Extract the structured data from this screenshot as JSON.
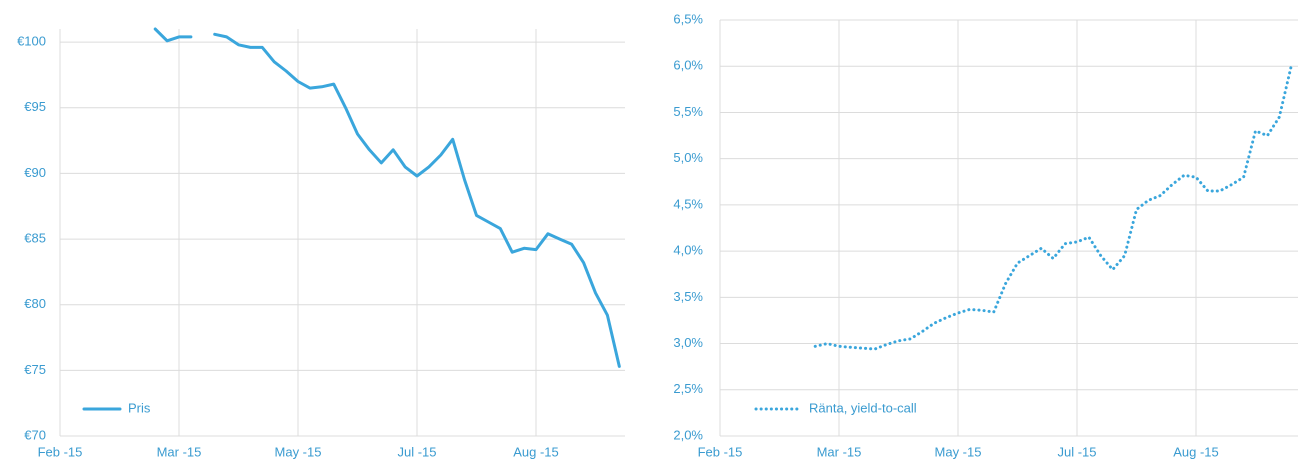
{
  "chart_data": [
    {
      "type": "line",
      "categories": [
        "Feb -15",
        null,
        null,
        null,
        null,
        null,
        null,
        null,
        null,
        null,
        "Mar -15",
        null,
        null,
        null,
        null,
        null,
        null,
        null,
        null,
        null,
        "May -15",
        null,
        null,
        null,
        null,
        null,
        null,
        null,
        null,
        null,
        "Jul -15",
        null,
        null,
        null,
        null,
        null,
        null,
        null,
        null,
        null,
        "Aug -15",
        null,
        null,
        null,
        null,
        null,
        null,
        null
      ],
      "series": [
        {
          "name": "Pris",
          "color": "#3aa6dc",
          "line_style": "solid",
          "values": [
            null,
            null,
            null,
            null,
            null,
            null,
            null,
            null,
            101.0,
            100.1,
            100.4,
            100.4,
            null,
            100.6,
            100.4,
            99.8,
            99.6,
            99.6,
            98.5,
            97.8,
            97.0,
            96.5,
            96.6,
            96.8,
            95.0,
            93.0,
            91.8,
            90.8,
            91.8,
            90.5,
            89.8,
            90.5,
            91.4,
            92.6,
            89.5,
            86.8,
            86.3,
            85.8,
            84.0,
            84.3,
            84.2,
            85.4,
            85.0,
            84.6,
            83.2,
            80.9,
            79.2,
            75.3
          ]
        }
      ],
      "ylim": [
        70,
        101
      ],
      "yticks": [
        {
          "value": 70,
          "label": "€70"
        },
        {
          "value": 75,
          "label": "€75"
        },
        {
          "value": 80,
          "label": "€80"
        },
        {
          "value": 85,
          "label": "€85"
        },
        {
          "value": 90,
          "label": "€90"
        },
        {
          "value": 95,
          "label": "€95"
        },
        {
          "value": 100,
          "label": "€100"
        }
      ],
      "grid": true,
      "legend": "lower left"
    },
    {
      "type": "line",
      "categories": [
        "Feb -15",
        null,
        null,
        null,
        null,
        null,
        null,
        null,
        null,
        null,
        "Mar -15",
        null,
        null,
        null,
        null,
        null,
        null,
        null,
        null,
        null,
        "May -15",
        null,
        null,
        null,
        null,
        null,
        null,
        null,
        null,
        null,
        "Jul -15",
        null,
        null,
        null,
        null,
        null,
        null,
        null,
        null,
        null,
        "Aug -15",
        null,
        null,
        null,
        null,
        null,
        null,
        null,
        null
      ],
      "series": [
        {
          "name": "Ränta, yield-to-call",
          "color": "#3aa6dc",
          "line_style": "dotted",
          "values": [
            null,
            null,
            null,
            null,
            null,
            null,
            null,
            null,
            2.97,
            3.0,
            2.97,
            2.96,
            2.95,
            2.94,
            2.99,
            3.03,
            3.05,
            3.13,
            3.22,
            3.28,
            3.33,
            3.37,
            3.36,
            3.34,
            3.65,
            3.87,
            3.95,
            4.03,
            3.92,
            4.08,
            4.1,
            4.15,
            3.95,
            3.8,
            3.95,
            4.45,
            4.55,
            4.6,
            4.72,
            4.82,
            4.8,
            4.65,
            4.65,
            4.72,
            4.8,
            5.3,
            5.25,
            5.45,
            6.0
          ]
        }
      ],
      "ylim": [
        2.0,
        6.5
      ],
      "yticks": [
        {
          "value": 2.0,
          "label": "2,0%"
        },
        {
          "value": 2.5,
          "label": "2,5%"
        },
        {
          "value": 3.0,
          "label": "3,0%"
        },
        {
          "value": 3.5,
          "label": "3,5%"
        },
        {
          "value": 4.0,
          "label": "4,0%"
        },
        {
          "value": 4.5,
          "label": "4,5%"
        },
        {
          "value": 5.0,
          "label": "5,0%"
        },
        {
          "value": 5.5,
          "label": "5,5%"
        },
        {
          "value": 6.0,
          "label": "6,0%"
        },
        {
          "value": 6.5,
          "label": "6,5%"
        }
      ],
      "grid": true,
      "legend": "lower left"
    }
  ]
}
